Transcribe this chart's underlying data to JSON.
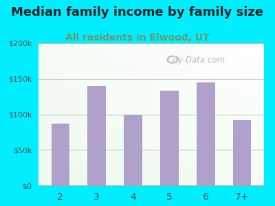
{
  "title": "Median family income by family size",
  "subtitle": "All residents in Elwood, UT",
  "categories": [
    "2",
    "3",
    "4",
    "5",
    "6",
    "7+"
  ],
  "values": [
    87000,
    140000,
    100000,
    133000,
    145000,
    92000
  ],
  "bar_color": "#b0a0cc",
  "title_fontsize": 13,
  "subtitle_fontsize": 10,
  "title_color": "#222222",
  "subtitle_color": "#6a9a6a",
  "background_outer": "#00eeff",
  "ylim": [
    0,
    200000
  ],
  "yticks": [
    0,
    50000,
    100000,
    150000,
    200000
  ],
  "ytick_labels": [
    "$0",
    "$50k",
    "$100k",
    "$150k",
    "$200k"
  ],
  "watermark": "City-Data.com",
  "tick_color": "#555555",
  "grid_color": "#bbbbbb",
  "bar_width": 0.5
}
